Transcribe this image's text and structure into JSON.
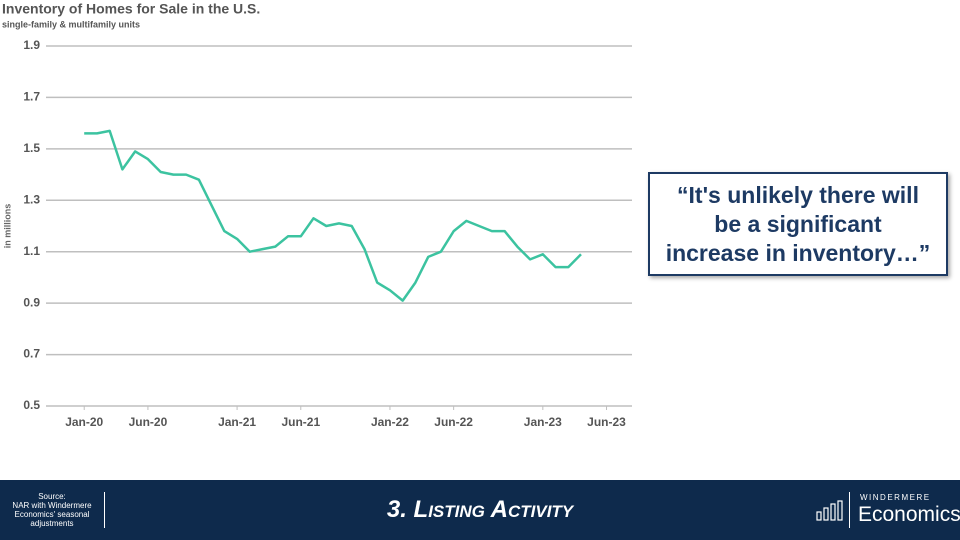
{
  "chart_data": {
    "type": "line",
    "title": "Inventory of Homes for Sale in the U.S.",
    "subtitle": "single-family & multifamily units",
    "y_label": "in millions",
    "x": [
      "2020-01",
      "2020-02",
      "2020-03",
      "2020-04",
      "2020-05",
      "2020-06",
      "2020-07",
      "2020-08",
      "2020-09",
      "2020-10",
      "2020-11",
      "2020-12",
      "2021-01",
      "2021-02",
      "2021-03",
      "2021-04",
      "2021-05",
      "2021-06",
      "2021-07",
      "2021-08",
      "2021-09",
      "2021-10",
      "2021-11",
      "2021-12",
      "2022-01",
      "2022-02",
      "2022-03",
      "2022-04",
      "2022-05",
      "2022-06",
      "2022-07",
      "2022-08",
      "2022-09",
      "2022-10",
      "2022-11",
      "2022-12",
      "2023-01",
      "2023-02",
      "2023-03",
      "2023-04"
    ],
    "values": [
      1.56,
      1.56,
      1.57,
      1.42,
      1.49,
      1.46,
      1.41,
      1.4,
      1.4,
      1.38,
      1.28,
      1.18,
      1.15,
      1.1,
      1.11,
      1.12,
      1.16,
      1.16,
      1.23,
      1.2,
      1.21,
      1.2,
      1.11,
      0.98,
      0.95,
      0.91,
      0.98,
      1.08,
      1.1,
      1.18,
      1.22,
      1.2,
      1.18,
      1.18,
      1.12,
      1.07,
      1.09,
      1.04,
      1.04,
      1.09
    ],
    "color": "#3cc3a0",
    "xlim": [
      "2019-10",
      "2023-08"
    ],
    "xticks": [
      {
        "value": "2020-01",
        "label": "Jan-20"
      },
      {
        "value": "2020-06",
        "label": "Jun-20"
      },
      {
        "value": "2021-01",
        "label": "Jan-21"
      },
      {
        "value": "2021-06",
        "label": "Jun-21"
      },
      {
        "value": "2022-01",
        "label": "Jan-22"
      },
      {
        "value": "2022-06",
        "label": "Jun-22"
      },
      {
        "value": "2023-01",
        "label": "Jan-23"
      },
      {
        "value": "2023-06",
        "label": "Jun-23"
      }
    ],
    "ylim": [
      0.5,
      1.9
    ],
    "yticks": [
      0.5,
      0.7,
      0.9,
      1.1,
      1.3,
      1.5,
      1.7,
      1.9
    ],
    "grid": true
  },
  "quote": {
    "lines": [
      "“It's unlikely there will",
      "be a significant",
      "increase in inventory…”"
    ]
  },
  "footer": {
    "source_lines": [
      "Source:",
      "NAR with Windermere",
      "Economics' seasonal",
      "adjustments"
    ],
    "title": "3. Listing Activity",
    "brand_top": "WINDERMERE",
    "brand_bottom": "Economics"
  }
}
